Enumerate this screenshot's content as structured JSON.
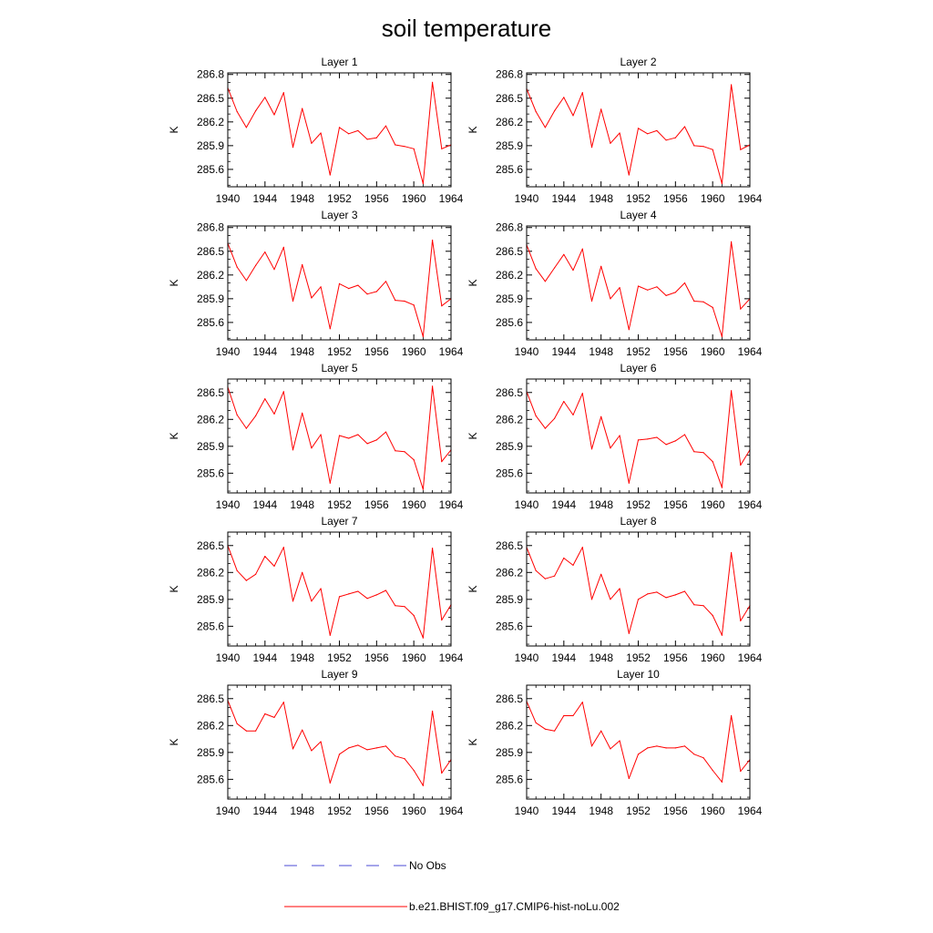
{
  "title": "soil temperature",
  "legend": [
    {
      "label": "No Obs",
      "color": "#4b4bd6",
      "dash": true
    },
    {
      "label": "b.e21.BHIST.f09_g17.CMIP6-hist-noLu.002",
      "color": "#ff0000",
      "dash": false
    }
  ],
  "chart_data": [
    {
      "type": "line",
      "title": "Layer 1",
      "xlabel": "",
      "ylabel": "K",
      "xlim": [
        1940,
        1964
      ],
      "ylim": [
        285.38,
        286.82
      ],
      "xticks": [
        1940,
        1944,
        1948,
        1952,
        1956,
        1960,
        1964
      ],
      "yticks": [
        285.6,
        285.9,
        286.2,
        286.5,
        286.8
      ],
      "x": [
        1940,
        1941,
        1942,
        1943,
        1944,
        1945,
        1946,
        1947,
        1948,
        1949,
        1950,
        1951,
        1952,
        1953,
        1954,
        1955,
        1956,
        1957,
        1958,
        1959,
        1960,
        1961,
        1962,
        1963,
        1964
      ],
      "series": [
        {
          "color": "#ff0000",
          "values": [
            286.63,
            286.33,
            286.13,
            286.34,
            286.51,
            286.29,
            286.57,
            285.88,
            286.37,
            285.93,
            286.06,
            285.53,
            286.13,
            286.05,
            286.09,
            285.98,
            286.0,
            286.15,
            285.91,
            285.89,
            285.86,
            285.42,
            286.7,
            285.86,
            285.91
          ]
        }
      ]
    },
    {
      "type": "line",
      "title": "Layer 2",
      "xlabel": "",
      "ylabel": "K",
      "xlim": [
        1940,
        1964
      ],
      "ylim": [
        285.38,
        286.82
      ],
      "xticks": [
        1940,
        1944,
        1948,
        1952,
        1956,
        1960,
        1964
      ],
      "yticks": [
        285.6,
        285.9,
        286.2,
        286.5,
        286.8
      ],
      "x": [
        1940,
        1941,
        1942,
        1943,
        1944,
        1945,
        1946,
        1947,
        1948,
        1949,
        1950,
        1951,
        1952,
        1953,
        1954,
        1955,
        1956,
        1957,
        1958,
        1959,
        1960,
        1961,
        1962,
        1963,
        1964
      ],
      "series": [
        {
          "color": "#ff0000",
          "values": [
            286.62,
            286.33,
            286.13,
            286.34,
            286.51,
            286.28,
            286.57,
            285.88,
            286.36,
            285.93,
            286.06,
            285.53,
            286.12,
            286.05,
            286.09,
            285.97,
            286.0,
            286.14,
            285.9,
            285.89,
            285.85,
            285.42,
            286.67,
            285.85,
            285.91
          ]
        }
      ]
    },
    {
      "type": "line",
      "title": "Layer 3",
      "xlabel": "",
      "ylabel": "K",
      "xlim": [
        1940,
        1964
      ],
      "ylim": [
        285.38,
        286.82
      ],
      "xticks": [
        1940,
        1944,
        1948,
        1952,
        1956,
        1960,
        1964
      ],
      "yticks": [
        285.6,
        285.9,
        286.2,
        286.5,
        286.8
      ],
      "x": [
        1940,
        1941,
        1942,
        1943,
        1944,
        1945,
        1946,
        1947,
        1948,
        1949,
        1950,
        1951,
        1952,
        1953,
        1954,
        1955,
        1956,
        1957,
        1958,
        1959,
        1960,
        1961,
        1962,
        1963,
        1964
      ],
      "series": [
        {
          "color": "#ff0000",
          "values": [
            286.6,
            286.3,
            286.13,
            286.32,
            286.49,
            286.27,
            286.55,
            285.87,
            286.33,
            285.91,
            286.05,
            285.52,
            286.09,
            286.03,
            286.07,
            285.96,
            285.99,
            286.12,
            285.88,
            285.87,
            285.82,
            285.42,
            286.64,
            285.81,
            285.9
          ]
        }
      ]
    },
    {
      "type": "line",
      "title": "Layer 4",
      "xlabel": "",
      "ylabel": "K",
      "xlim": [
        1940,
        1964
      ],
      "ylim": [
        285.38,
        286.82
      ],
      "xticks": [
        1940,
        1944,
        1948,
        1952,
        1956,
        1960,
        1964
      ],
      "yticks": [
        285.6,
        285.9,
        286.2,
        286.5,
        286.8
      ],
      "x": [
        1940,
        1941,
        1942,
        1943,
        1944,
        1945,
        1946,
        1947,
        1948,
        1949,
        1950,
        1951,
        1952,
        1953,
        1954,
        1955,
        1956,
        1957,
        1958,
        1959,
        1960,
        1961,
        1962,
        1963,
        1964
      ],
      "series": [
        {
          "color": "#ff0000",
          "values": [
            286.58,
            286.28,
            286.12,
            286.29,
            286.46,
            286.26,
            286.53,
            285.87,
            286.31,
            285.9,
            286.04,
            285.51,
            286.06,
            286.01,
            286.05,
            285.94,
            285.98,
            286.1,
            285.87,
            285.86,
            285.79,
            285.42,
            286.62,
            285.77,
            285.9
          ]
        }
      ]
    },
    {
      "type": "line",
      "title": "Layer 5",
      "xlabel": "",
      "ylabel": "K",
      "xlim": [
        1940,
        1964
      ],
      "ylim": [
        285.38,
        286.65
      ],
      "xticks": [
        1940,
        1944,
        1948,
        1952,
        1956,
        1960,
        1964
      ],
      "yticks": [
        285.6,
        285.9,
        286.2,
        286.5
      ],
      "x": [
        1940,
        1941,
        1942,
        1943,
        1944,
        1945,
        1946,
        1947,
        1948,
        1949,
        1950,
        1951,
        1952,
        1953,
        1954,
        1955,
        1956,
        1957,
        1958,
        1959,
        1960,
        1961,
        1962,
        1963,
        1964
      ],
      "series": [
        {
          "color": "#ff0000",
          "values": [
            286.56,
            286.25,
            286.1,
            286.24,
            286.43,
            286.26,
            286.51,
            285.86,
            286.27,
            285.88,
            286.03,
            285.49,
            286.02,
            285.99,
            286.03,
            285.93,
            285.97,
            286.06,
            285.85,
            285.84,
            285.75,
            285.42,
            286.57,
            285.73,
            285.86
          ]
        }
      ]
    },
    {
      "type": "line",
      "title": "Layer 6",
      "xlabel": "",
      "ylabel": "K",
      "xlim": [
        1940,
        1964
      ],
      "ylim": [
        285.38,
        286.65
      ],
      "xticks": [
        1940,
        1944,
        1948,
        1952,
        1956,
        1960,
        1964
      ],
      "yticks": [
        285.6,
        285.9,
        286.2,
        286.5
      ],
      "x": [
        1940,
        1941,
        1942,
        1943,
        1944,
        1945,
        1946,
        1947,
        1948,
        1949,
        1950,
        1951,
        1952,
        1953,
        1954,
        1955,
        1956,
        1957,
        1958,
        1959,
        1960,
        1961,
        1962,
        1963,
        1964
      ],
      "series": [
        {
          "color": "#ff0000",
          "values": [
            286.51,
            286.24,
            286.1,
            286.21,
            286.4,
            286.25,
            286.49,
            285.87,
            286.23,
            285.88,
            286.02,
            285.49,
            285.97,
            285.98,
            286.0,
            285.92,
            285.96,
            286.03,
            285.84,
            285.83,
            285.73,
            285.44,
            286.52,
            285.69,
            285.86
          ]
        }
      ]
    },
    {
      "type": "line",
      "title": "Layer 7",
      "xlabel": "",
      "ylabel": "K",
      "xlim": [
        1940,
        1964
      ],
      "ylim": [
        285.38,
        286.65
      ],
      "xticks": [
        1940,
        1944,
        1948,
        1952,
        1956,
        1960,
        1964
      ],
      "yticks": [
        285.6,
        285.9,
        286.2,
        286.5
      ],
      "x": [
        1940,
        1941,
        1942,
        1943,
        1944,
        1945,
        1946,
        1947,
        1948,
        1949,
        1950,
        1951,
        1952,
        1953,
        1954,
        1955,
        1956,
        1957,
        1958,
        1959,
        1960,
        1961,
        1962,
        1963,
        1964
      ],
      "series": [
        {
          "color": "#ff0000",
          "values": [
            286.5,
            286.22,
            286.11,
            286.18,
            286.38,
            286.27,
            286.48,
            285.88,
            286.2,
            285.88,
            286.02,
            285.5,
            285.93,
            285.96,
            285.99,
            285.91,
            285.95,
            286.0,
            285.83,
            285.82,
            285.72,
            285.47,
            286.47,
            285.67,
            285.84
          ]
        }
      ]
    },
    {
      "type": "line",
      "title": "Layer 8",
      "xlabel": "",
      "ylabel": "K",
      "xlim": [
        1940,
        1964
      ],
      "ylim": [
        285.38,
        286.65
      ],
      "xticks": [
        1940,
        1944,
        1948,
        1952,
        1956,
        1960,
        1964
      ],
      "yticks": [
        285.6,
        285.9,
        286.2,
        286.5
      ],
      "x": [
        1940,
        1941,
        1942,
        1943,
        1944,
        1945,
        1946,
        1947,
        1948,
        1949,
        1950,
        1951,
        1952,
        1953,
        1954,
        1955,
        1956,
        1957,
        1958,
        1959,
        1960,
        1961,
        1962,
        1963,
        1964
      ],
      "series": [
        {
          "color": "#ff0000",
          "values": [
            286.48,
            286.22,
            286.13,
            286.16,
            286.36,
            286.28,
            286.48,
            285.9,
            286.18,
            285.9,
            286.02,
            285.52,
            285.9,
            285.96,
            285.98,
            285.92,
            285.95,
            285.99,
            285.84,
            285.83,
            285.72,
            285.5,
            286.42,
            285.66,
            285.83
          ]
        }
      ]
    },
    {
      "type": "line",
      "title": "Layer 9",
      "xlabel": "",
      "ylabel": "K",
      "xlim": [
        1940,
        1964
      ],
      "ylim": [
        285.38,
        286.65
      ],
      "xticks": [
        1940,
        1944,
        1948,
        1952,
        1956,
        1960,
        1964
      ],
      "yticks": [
        285.6,
        285.9,
        286.2,
        286.5
      ],
      "x": [
        1940,
        1941,
        1942,
        1943,
        1944,
        1945,
        1946,
        1947,
        1948,
        1949,
        1950,
        1951,
        1952,
        1953,
        1954,
        1955,
        1956,
        1957,
        1958,
        1959,
        1960,
        1961,
        1962,
        1963,
        1964
      ],
      "series": [
        {
          "color": "#ff0000",
          "values": [
            286.48,
            286.22,
            286.14,
            286.14,
            286.33,
            286.29,
            286.46,
            285.94,
            286.15,
            285.92,
            286.02,
            285.56,
            285.88,
            285.95,
            285.98,
            285.93,
            285.95,
            285.97,
            285.86,
            285.83,
            285.7,
            285.53,
            286.36,
            285.67,
            285.82
          ]
        }
      ]
    },
    {
      "type": "line",
      "title": "Layer 10",
      "xlabel": "",
      "ylabel": "K",
      "xlim": [
        1940,
        1964
      ],
      "ylim": [
        285.38,
        286.65
      ],
      "xticks": [
        1940,
        1944,
        1948,
        1952,
        1956,
        1960,
        1964
      ],
      "yticks": [
        285.6,
        285.9,
        286.2,
        286.5
      ],
      "x": [
        1940,
        1941,
        1942,
        1943,
        1944,
        1945,
        1946,
        1947,
        1948,
        1949,
        1950,
        1951,
        1952,
        1953,
        1954,
        1955,
        1956,
        1957,
        1958,
        1959,
        1960,
        1961,
        1962,
        1963,
        1964
      ],
      "series": [
        {
          "color": "#ff0000",
          "values": [
            286.47,
            286.23,
            286.16,
            286.14,
            286.31,
            286.31,
            286.46,
            285.97,
            286.14,
            285.94,
            286.03,
            285.61,
            285.88,
            285.95,
            285.97,
            285.95,
            285.95,
            285.97,
            285.88,
            285.84,
            285.7,
            285.57,
            286.31,
            285.69,
            285.82
          ]
        }
      ]
    }
  ]
}
